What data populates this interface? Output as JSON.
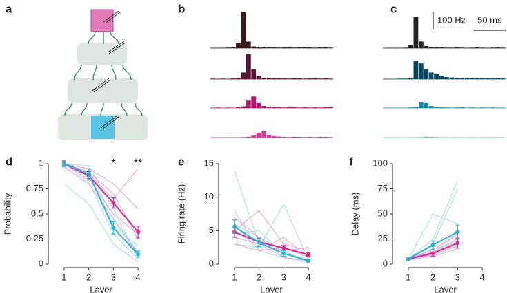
{
  "diagram": {
    "label": "a"
  },
  "chart_data": [
    {
      "type": "histogram",
      "label": "b",
      "bins": [
        0,
        8,
        16,
        24,
        32,
        40,
        48,
        56,
        64,
        72,
        80,
        88,
        96,
        104,
        112,
        120,
        128,
        136,
        144,
        152,
        160,
        168,
        176,
        184,
        192
      ],
      "series": [
        {
          "color": "#3a1a1a",
          "values": [
            2,
            2,
            2,
            3,
            4,
            30,
            220,
            40,
            10,
            6,
            5,
            4,
            4,
            3,
            4,
            5,
            3,
            4,
            5,
            4,
            3,
            4,
            5,
            3
          ]
        },
        {
          "color": "#5a1232",
          "values": [
            3,
            2,
            3,
            2,
            4,
            5,
            40,
            150,
            60,
            20,
            8,
            6,
            4,
            5,
            4,
            3,
            5,
            4,
            3,
            4,
            5,
            3,
            4,
            3
          ]
        },
        {
          "color": "#b0186e",
          "values": [
            2,
            3,
            2,
            3,
            2,
            4,
            10,
            45,
            70,
            30,
            12,
            8,
            5,
            4,
            3,
            8,
            4,
            3,
            5,
            3,
            4,
            3,
            4,
            5
          ]
        },
        {
          "color": "#d63aa0",
          "values": [
            1,
            2,
            1,
            2,
            1,
            2,
            3,
            5,
            12,
            30,
            40,
            15,
            8,
            6,
            4,
            3,
            5,
            4,
            3,
            4,
            3,
            5,
            4,
            3
          ]
        }
      ]
    },
    {
      "type": "histogram",
      "label": "c",
      "bins": [
        0,
        8,
        16,
        24,
        32,
        40,
        48,
        56,
        64,
        72,
        80,
        88,
        96,
        104,
        112,
        120,
        128,
        136,
        144,
        152,
        160,
        168,
        176,
        184,
        192
      ],
      "scale_bar": {
        "y": {
          "value": 100,
          "label": "100 Hz"
        },
        "x": {
          "value": 50,
          "label": "50 ms"
        }
      },
      "series": [
        {
          "color": "#222222",
          "values": [
            2,
            1,
            2,
            2,
            3,
            20,
            190,
            40,
            12,
            6,
            5,
            4,
            3,
            3,
            4,
            3,
            2,
            3,
            4,
            3,
            2,
            3,
            4,
            3
          ]
        },
        {
          "color": "#0b4a5e",
          "values": [
            2,
            2,
            2,
            3,
            3,
            5,
            110,
            95,
            60,
            40,
            30,
            20,
            12,
            10,
            8,
            6,
            8,
            7,
            5,
            6,
            5,
            4,
            6,
            4
          ]
        },
        {
          "color": "#1a8aa0",
          "values": [
            1,
            1,
            1,
            2,
            1,
            3,
            8,
            35,
            30,
            12,
            6,
            4,
            3,
            2,
            3,
            4,
            2,
            3,
            2,
            3,
            2,
            3,
            2,
            2
          ]
        },
        {
          "color": "#5cc8dc",
          "values": [
            1,
            0,
            1,
            1,
            0,
            1,
            2,
            3,
            6,
            4,
            3,
            2,
            1,
            1,
            2,
            1,
            1,
            2,
            1,
            1,
            1,
            2,
            1,
            1
          ]
        }
      ]
    },
    {
      "type": "line",
      "label": "d",
      "x_label": "Layer",
      "y_label": "Probability",
      "x": [
        1,
        2,
        3,
        4
      ],
      "xlim": [
        0.5,
        4.5
      ],
      "xticks": [
        1,
        2,
        3,
        4
      ],
      "ylim": [
        0,
        1
      ],
      "yticks": [
        0,
        0.25,
        0.5,
        0.75,
        1
      ],
      "annotations": [
        {
          "x": 3,
          "text": "*"
        },
        {
          "x": 4,
          "text": "**"
        }
      ],
      "traces": [
        {
          "color": "#8fd6ea",
          "values": [
            1,
            0.82,
            0.3,
            0.05
          ]
        },
        {
          "color": "#8fd6ea",
          "values": [
            1,
            0.95,
            0.45,
            0.12
          ]
        },
        {
          "color": "#8fd6ea",
          "values": [
            0.8,
            0.6,
            0.2,
            0.02
          ]
        },
        {
          "color": "#8fd6ea",
          "values": [
            1,
            0.9,
            0.38,
            0.18
          ]
        },
        {
          "color": "#8fd6ea",
          "values": [
            1,
            0.98,
            0.55,
            0.05
          ]
        },
        {
          "color": "#f08cc8",
          "values": [
            1,
            0.92,
            0.7,
            0.25
          ]
        },
        {
          "color": "#f08cc8",
          "values": [
            1,
            0.85,
            0.5,
            0.3
          ]
        },
        {
          "color": "#f08cc8",
          "values": [
            1,
            0.95,
            0.8,
            0.55
          ]
        },
        {
          "color": "#f08cc8",
          "values": [
            0.97,
            0.8,
            0.45,
            0.1
          ]
        },
        {
          "color": "#f08cc8",
          "values": [
            1,
            0.9,
            0.65,
            0.95
          ]
        }
      ],
      "series": [
        {
          "color": "#d6298c",
          "values": [
            1,
            0.88,
            0.61,
            0.32
          ],
          "errors": [
            0.02,
            0.04,
            0.05,
            0.06
          ]
        },
        {
          "color": "#29b4d8",
          "values": [
            1,
            0.9,
            0.36,
            0.1
          ],
          "errors": [
            0.03,
            0.05,
            0.06,
            0.03
          ]
        }
      ]
    },
    {
      "type": "line",
      "label": "e",
      "x_label": "Layer",
      "y_label": "Firing rate (Hz)",
      "x": [
        1,
        2,
        3,
        4
      ],
      "xlim": [
        0.5,
        4.5
      ],
      "xticks": [
        1,
        2,
        3,
        4
      ],
      "ylim": [
        0,
        15
      ],
      "yticks": [
        0,
        5,
        10,
        15
      ],
      "traces": [
        {
          "color": "#8fd6ea",
          "values": [
            14,
            3,
            1,
            0.5
          ]
        },
        {
          "color": "#8fd6ea",
          "values": [
            6,
            4,
            2,
            0.3
          ]
        },
        {
          "color": "#8fd6ea",
          "values": [
            3,
            2.5,
            9,
            0.5
          ]
        },
        {
          "color": "#8fd6ea",
          "values": [
            8,
            2,
            1,
            0.2
          ]
        },
        {
          "color": "#8fd6ea",
          "values": [
            4.5,
            5,
            1.5,
            0.8
          ]
        },
        {
          "color": "#f08cc8",
          "values": [
            5,
            8,
            3,
            2
          ]
        },
        {
          "color": "#f08cc8",
          "values": [
            3,
            2,
            2.5,
            1
          ]
        },
        {
          "color": "#f08cc8",
          "values": [
            7,
            4,
            1,
            0.5
          ]
        },
        {
          "color": "#f08cc8",
          "values": [
            4,
            3,
            2,
            2.5
          ]
        },
        {
          "color": "#f08cc8",
          "values": [
            6,
            2,
            4,
            1
          ]
        }
      ],
      "series": [
        {
          "color": "#d6298c",
          "values": [
            4.8,
            3.3,
            2.4,
            1.4
          ],
          "errors": [
            0.8,
            0.6,
            0.4,
            0.3
          ]
        },
        {
          "color": "#29b4d8",
          "values": [
            5.6,
            3.2,
            1.6,
            0.5
          ],
          "errors": [
            1,
            0.6,
            0.4,
            0.2
          ]
        }
      ]
    },
    {
      "type": "line",
      "label": "f",
      "x_label": "Layer",
      "y_label": "Delay (ms)",
      "x": [
        1,
        2,
        3
      ],
      "xlim": [
        0.5,
        4.5
      ],
      "xticks": [
        1,
        2,
        3,
        4
      ],
      "ylim": [
        0,
        100
      ],
      "yticks": [
        0,
        25,
        50,
        75,
        100
      ],
      "traces": [
        {
          "color": "#8fd6ea",
          "values": [
            5,
            25,
            83
          ]
        },
        {
          "color": "#8fd6ea",
          "values": [
            5,
            50,
            40
          ]
        },
        {
          "color": "#8fd6ea",
          "values": [
            4,
            12,
            30
          ]
        },
        {
          "color": "#8fd6ea",
          "values": [
            6,
            20,
            75
          ]
        },
        {
          "color": "#8fd6ea",
          "values": [
            5,
            15,
            22
          ]
        },
        {
          "color": "#f08cc8",
          "values": [
            5,
            10,
            20
          ]
        },
        {
          "color": "#f08cc8",
          "values": [
            4,
            8,
            15
          ]
        },
        {
          "color": "#f08cc8",
          "values": [
            5,
            14,
            30
          ]
        },
        {
          "color": "#f08cc8",
          "values": [
            6,
            12,
            25
          ]
        },
        {
          "color": "#f08cc8",
          "values": [
            5,
            9,
            18
          ]
        }
      ],
      "series": [
        {
          "color": "#d6298c",
          "values": [
            5,
            11,
            21
          ],
          "errors": [
            1,
            3,
            5
          ]
        },
        {
          "color": "#29b4d8",
          "values": [
            5,
            19,
            32
          ],
          "errors": [
            1,
            4,
            7
          ]
        }
      ]
    }
  ]
}
